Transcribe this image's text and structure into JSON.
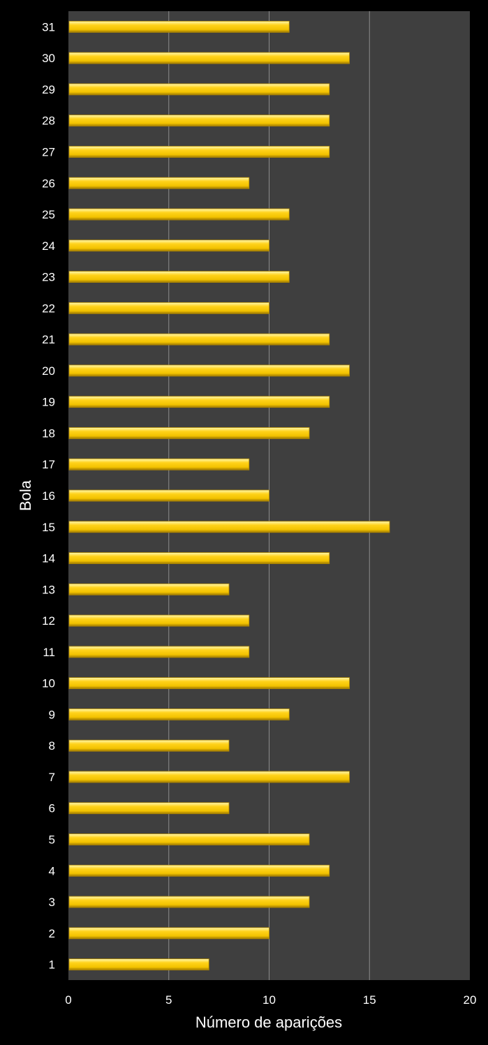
{
  "chart_data": {
    "type": "bar",
    "orientation": "horizontal",
    "title": "",
    "xlabel": "Número de aparições",
    "ylabel": "Bola",
    "xlim": [
      0,
      20
    ],
    "xticks": [
      "0",
      "5",
      "10",
      "15",
      "20"
    ],
    "grid": true,
    "legend": "none",
    "categories": [
      "1",
      "2",
      "3",
      "4",
      "5",
      "6",
      "7",
      "8",
      "9",
      "10",
      "11",
      "12",
      "13",
      "14",
      "15",
      "16",
      "17",
      "18",
      "19",
      "20",
      "21",
      "22",
      "23",
      "24",
      "25",
      "26",
      "27",
      "28",
      "29",
      "30",
      "31"
    ],
    "values": [
      7,
      10,
      12,
      13,
      12,
      8,
      14,
      8,
      11,
      14,
      9,
      9,
      8,
      13,
      16,
      10,
      9,
      12,
      13,
      14,
      13,
      10,
      11,
      10,
      11,
      9,
      13,
      13,
      13,
      14,
      11
    ],
    "colors": {
      "background": "#000000",
      "plot_area": "#3f3f3f",
      "gridline": "#8c8c8c",
      "bar": "#ffcc00",
      "bar_highlight": "#fff38a",
      "bar_shadow": "#b38a00",
      "text": "#ffffff"
    }
  }
}
